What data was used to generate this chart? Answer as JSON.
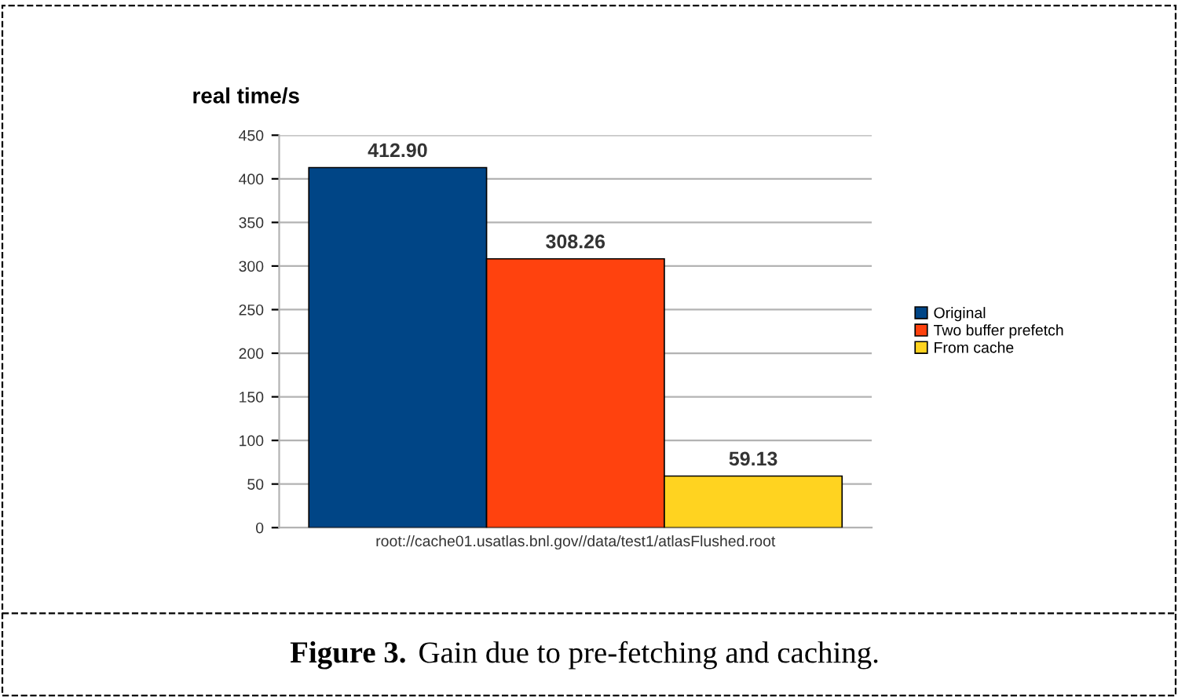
{
  "chart_data": {
    "type": "bar",
    "ylabel": "real time/s",
    "categories": [
      "root://cache01.usatlas.bnl.gov//data/test1/atlasFlushed.root"
    ],
    "series": [
      {
        "name": "Original",
        "color": "#004586",
        "values": [
          412.9
        ],
        "value_labels": [
          "412.90"
        ]
      },
      {
        "name": "Two buffer prefetch",
        "color": "#ff420e",
        "values": [
          308.26
        ],
        "value_labels": [
          "308.26"
        ]
      },
      {
        "name": "From cache",
        "color": "#ffd320",
        "values": [
          59.13
        ],
        "value_labels": [
          "59.13"
        ]
      }
    ],
    "ylim": [
      0,
      450
    ],
    "yticks": [
      0,
      50,
      100,
      150,
      200,
      250,
      300,
      350,
      400,
      450
    ],
    "grid": "y",
    "legend": "right",
    "annotations": [
      "Figure 3.",
      "Gain due to pre-fetching and caching."
    ]
  }
}
